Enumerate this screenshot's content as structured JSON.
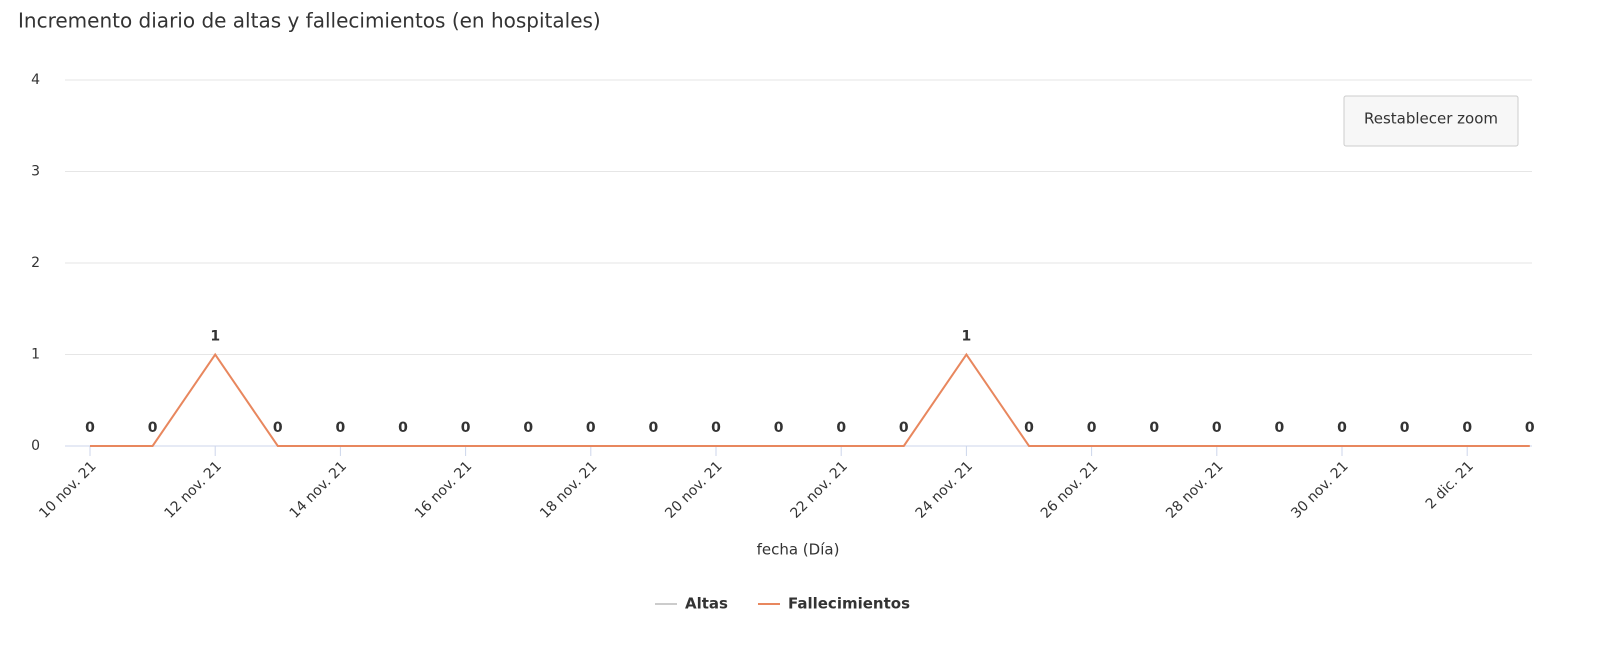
{
  "chart_data": {
    "type": "line",
    "title": "Incremento diario de altas y fallecimientos (en hospitales)",
    "x_label": "fecha (Día)",
    "categories": [
      "10 nov. 21",
      null,
      "12 nov. 21",
      null,
      "14 nov. 21",
      null,
      "16 nov. 21",
      null,
      "18 nov. 21",
      null,
      "20 nov. 21",
      null,
      "22 nov. 21",
      null,
      "24 nov. 21",
      null,
      "26 nov. 21",
      null,
      "28 nov. 21",
      null,
      "30 nov. 21",
      null,
      "2 dic. 21",
      null
    ],
    "series": [
      {
        "name": "Altas",
        "color": "#cccccc",
        "hidden": true
      },
      {
        "name": "Fallecimientos",
        "color": "#e8875e",
        "values": [
          0,
          0,
          1,
          0,
          0,
          0,
          0,
          0,
          0,
          0,
          0,
          0,
          0,
          0,
          1,
          0,
          0,
          0,
          0,
          0,
          0,
          0,
          0,
          0
        ]
      }
    ],
    "ylim": [
      0,
      4
    ],
    "yticks": [
      0,
      1,
      2,
      3,
      4
    ],
    "grid": true,
    "legend": "bottom",
    "reset_zoom_label": "Restablecer zoom"
  }
}
